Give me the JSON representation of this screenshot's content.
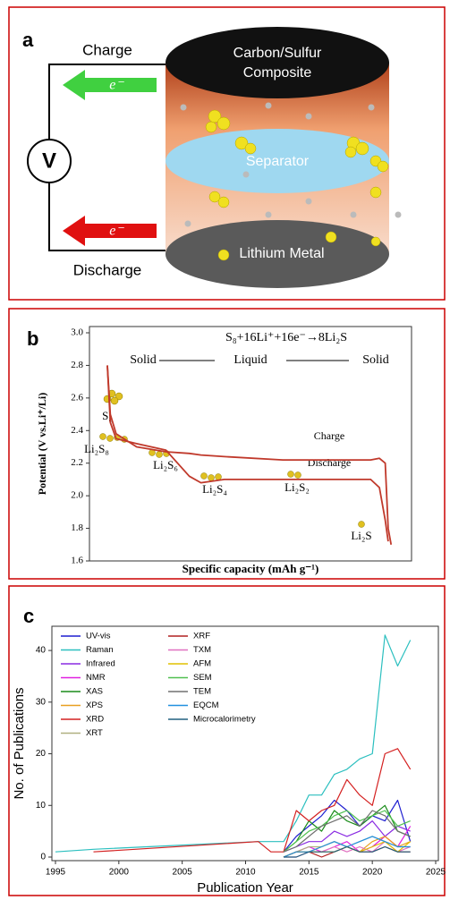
{
  "panel_a": {
    "letter": "a",
    "charge": "Charge",
    "discharge": "Discharge",
    "meter": "V",
    "electron_top": "e⁻",
    "electron_bottom": "e⁻",
    "cathode_line1": "Carbon/Sulfur",
    "cathode_line2": "Composite",
    "separator": "Separator",
    "anode": "Lithium Metal"
  },
  "chart_data": [
    {
      "type": "line",
      "letter": "b",
      "equation": "S₈+16Li⁺+16e⁻→8Li₂S",
      "phase_labels": [
        "Solid",
        "Liquid",
        "Solid"
      ],
      "species": [
        "S₈",
        "Li₂S₈",
        "Li₂S₆",
        "Li₂S₄",
        "Li₂S₂",
        "Li₂S"
      ],
      "x_label": "Specific capacity (mAh g⁻¹)",
      "y_label": "Potential (V vs.Li⁺/Li)",
      "x": [
        0,
        1,
        3,
        10,
        20,
        28,
        32,
        40,
        60,
        80,
        90,
        93,
        95,
        96,
        97
      ],
      "xlim": [
        0,
        100
      ],
      "ylim": [
        1.6,
        3.0
      ],
      "yticks": [
        1.6,
        1.8,
        {
          "value": 2,
          "label": "2.0"
        },
        2.2,
        2.4,
        2.6,
        2.8,
        {
          "value": 3,
          "label": "3.0"
        }
      ],
      "series": [
        {
          "name": "Charge",
          "color": "#c0392b",
          "values": [
            2.8,
            2.5,
            2.38,
            2.3,
            2.27,
            2.26,
            2.25,
            2.24,
            2.22,
            2.22,
            2.22,
            2.23,
            2.2,
            1.8,
            1.7
          ]
        },
        {
          "name": "Discharge",
          "color": "#c0392b",
          "values": [
            2.8,
            2.45,
            2.35,
            2.32,
            2.28,
            2.12,
            2.08,
            2.1,
            2.1,
            2.1,
            2.1,
            2.05,
            1.85,
            1.72,
            null
          ]
        }
      ]
    },
    {
      "type": "line",
      "letter": "c",
      "x_label": "Publication Year",
      "y_label": "No. of Publications",
      "x": [
        1995,
        1998,
        2011,
        2012,
        2013,
        2014,
        2015,
        2016,
        2017,
        2018,
        2019,
        2020,
        2021,
        2022,
        2023
      ],
      "xlim": [
        1995,
        2025
      ],
      "xticks": [
        1995,
        2000,
        2005,
        2010,
        2015,
        2020,
        2025
      ],
      "ylim": [
        0,
        44
      ],
      "yticks": [
        0,
        10,
        20,
        30,
        40
      ],
      "series": [
        {
          "name": "UV-vis",
          "color": "#1f1fd0",
          "values": [
            null,
            null,
            null,
            null,
            1,
            4,
            6,
            8,
            11,
            9,
            6,
            8,
            7,
            11,
            3
          ]
        },
        {
          "name": "Raman",
          "color": "#2bbfbf",
          "values": [
            1,
            1.5,
            3,
            3,
            3,
            7,
            12,
            12,
            16,
            17,
            19,
            20,
            43,
            37,
            42
          ]
        },
        {
          "name": "Infrared",
          "color": "#8a2be2",
          "values": [
            null,
            null,
            null,
            null,
            1,
            2,
            3,
            3,
            5,
            4,
            5,
            7,
            4,
            6,
            5
          ]
        },
        {
          "name": "NMR",
          "color": "#e020e0",
          "values": [
            null,
            null,
            null,
            null,
            0,
            1,
            2,
            1,
            2,
            3,
            1,
            2,
            4,
            2,
            6
          ]
        },
        {
          "name": "XAS",
          "color": "#1a8c1a",
          "values": [
            null,
            null,
            null,
            null,
            1,
            3,
            7,
            5,
            9,
            7,
            6,
            8,
            10,
            5,
            4
          ]
        },
        {
          "name": "XPS",
          "color": "#e8a020",
          "values": [
            null,
            null,
            null,
            null,
            0,
            1,
            1,
            2,
            3,
            2,
            1,
            3,
            4,
            2,
            3
          ]
        },
        {
          "name": "XRD",
          "color": "#d42020",
          "values": [
            null,
            1,
            3,
            1,
            1,
            9,
            7,
            9,
            10,
            15,
            12,
            10,
            20,
            21,
            17
          ]
        },
        {
          "name": "XRT",
          "color": "#b0b080",
          "values": [
            null,
            null,
            null,
            null,
            0,
            1,
            2,
            2,
            3,
            2,
            3,
            4,
            3,
            2,
            2
          ]
        },
        {
          "name": "XRF",
          "color": "#b02020",
          "values": [
            null,
            null,
            null,
            null,
            0,
            1,
            1,
            0,
            1,
            2,
            1,
            1,
            2,
            1,
            1
          ]
        },
        {
          "name": "TXM",
          "color": "#e070c0",
          "values": [
            null,
            null,
            null,
            null,
            0,
            0,
            1,
            1,
            2,
            1,
            2,
            1,
            3,
            1,
            2
          ]
        },
        {
          "name": "AFM",
          "color": "#e0c000",
          "values": [
            null,
            null,
            null,
            null,
            0,
            1,
            1,
            1,
            1,
            2,
            1,
            2,
            3,
            1,
            3
          ]
        },
        {
          "name": "SEM",
          "color": "#50c050",
          "values": [
            null,
            null,
            null,
            null,
            1,
            3,
            5,
            6,
            8,
            9,
            7,
            8,
            9,
            6,
            7
          ]
        },
        {
          "name": "TEM",
          "color": "#707070",
          "values": [
            null,
            null,
            null,
            null,
            1,
            2,
            4,
            6,
            7,
            8,
            6,
            9,
            8,
            5,
            4
          ]
        },
        {
          "name": "EQCM",
          "color": "#2090e0",
          "values": [
            null,
            null,
            null,
            null,
            0,
            1,
            1,
            2,
            3,
            2,
            3,
            4,
            3,
            2,
            2
          ]
        },
        {
          "name": "Microcalorimetry",
          "color": "#206080",
          "values": [
            null,
            null,
            null,
            null,
            0,
            0,
            1,
            1,
            1,
            2,
            1,
            1,
            2,
            1,
            1
          ]
        }
      ]
    }
  ]
}
